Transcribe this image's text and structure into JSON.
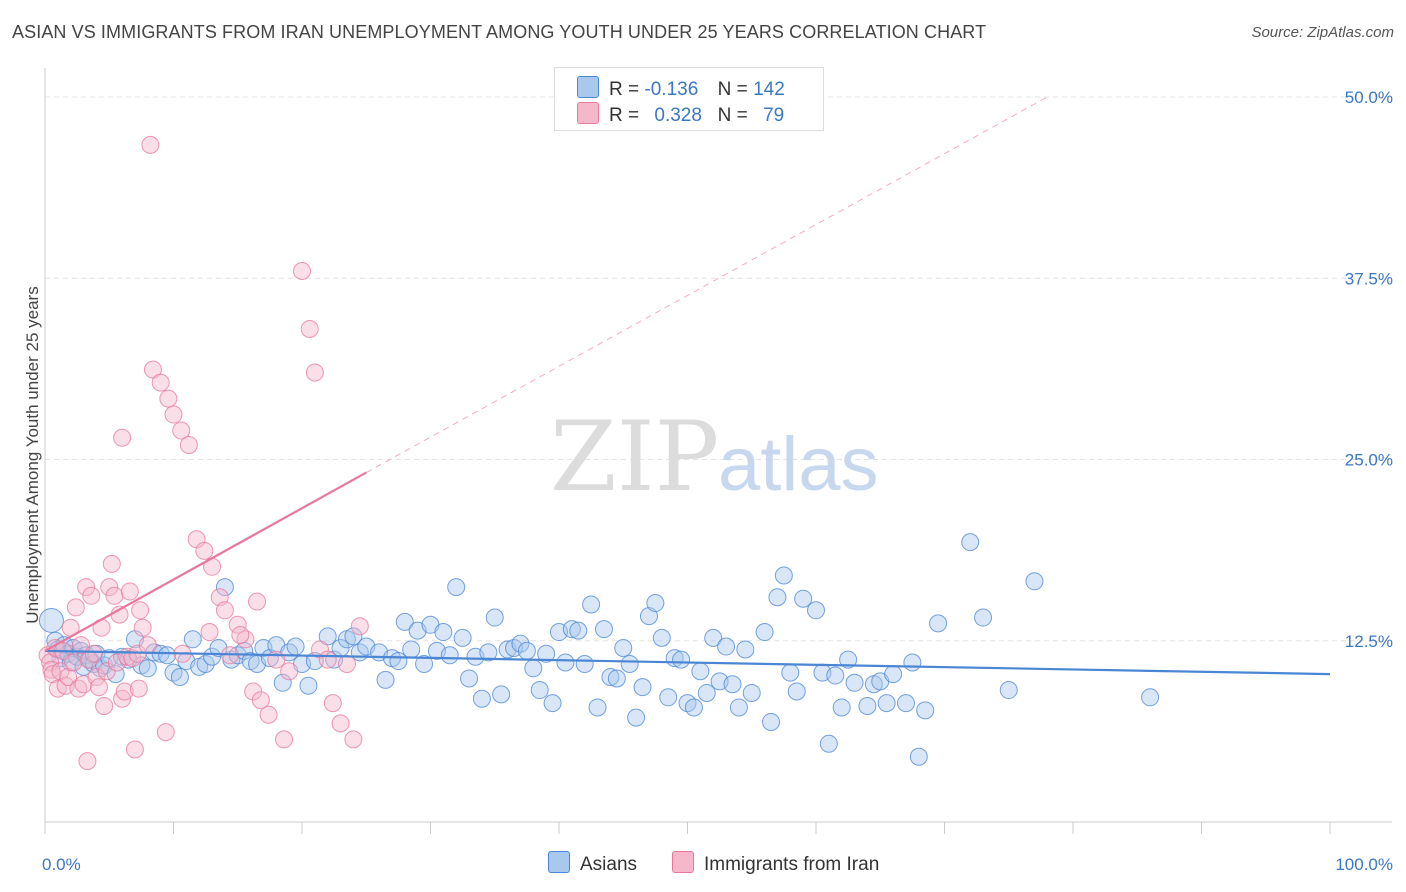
{
  "title": "ASIAN VS IMMIGRANTS FROM IRAN UNEMPLOYMENT AMONG YOUTH UNDER 25 YEARS CORRELATION CHART",
  "source": "Source: ZipAtlas.com",
  "watermark": {
    "zip": "ZIP",
    "atlas": "atlas"
  },
  "colors": {
    "asians": "#4a86d4",
    "iran": "#e8779b",
    "asians_fill": "#a9c8ee",
    "iran_fill": "#f5b8cb",
    "tick": "#3b78c4"
  },
  "legend": {
    "rows": [
      {
        "r_label": "R =",
        "r_value": "-0.136",
        "n_label": "N =",
        "n_value": "142"
      },
      {
        "r_label": "R =",
        "r_value": "0.328",
        "n_label": "N =",
        "n_value": "79"
      }
    ]
  },
  "bottom_legend": [
    {
      "label": "Asians"
    },
    {
      "label": "Immigrants from Iran"
    }
  ],
  "chart_data": {
    "type": "scatter",
    "ylabel": "Unemployment Among Youth under 25 years",
    "xlim": [
      0,
      100
    ],
    "ylim": [
      0,
      50
    ],
    "x_tick_labels": [
      "0.0%",
      "100.0%"
    ],
    "y_ticks": [
      12.5,
      25.0,
      37.5,
      50.0
    ],
    "y_tick_labels": [
      "12.5%",
      "25.0%",
      "37.5%",
      "50.0%"
    ],
    "grid": "horizontal dashed",
    "legend_position": "top-center",
    "series": [
      {
        "name": "Asians",
        "trend": {
          "x0": 0,
          "y0": 11.8,
          "x1": 100,
          "y1": 10.2
        },
        "points": [
          [
            0.5,
            13.9
          ],
          [
            0.8,
            12.5
          ],
          [
            1.0,
            11.9
          ],
          [
            1.2,
            11.3
          ],
          [
            1.5,
            12.2
          ],
          [
            1.8,
            11.6
          ],
          [
            2.0,
            11.0
          ],
          [
            2.2,
            12.0
          ],
          [
            2.5,
            11.4
          ],
          [
            2.8,
            11.8
          ],
          [
            3.0,
            10.7
          ],
          [
            3.2,
            11.5
          ],
          [
            3.5,
            11.2
          ],
          [
            3.8,
            10.9
          ],
          [
            4.0,
            11.6
          ],
          [
            4.3,
            10.6
          ],
          [
            4.6,
            10.8
          ],
          [
            5.0,
            11.3
          ],
          [
            5.5,
            10.2
          ],
          [
            6.0,
            11.4
          ],
          [
            6.5,
            11.2
          ],
          [
            7.0,
            12.6
          ],
          [
            7.5,
            10.8
          ],
          [
            8.0,
            10.6
          ],
          [
            8.5,
            11.7
          ],
          [
            9.0,
            11.6
          ],
          [
            9.5,
            11.5
          ],
          [
            10.0,
            10.3
          ],
          [
            10.5,
            10.0
          ],
          [
            11.0,
            11.1
          ],
          [
            11.5,
            12.6
          ],
          [
            12.0,
            10.7
          ],
          [
            12.5,
            10.9
          ],
          [
            13.0,
            11.4
          ],
          [
            13.5,
            12.0
          ],
          [
            14.0,
            16.2
          ],
          [
            14.5,
            11.2
          ],
          [
            15.0,
            11.5
          ],
          [
            15.5,
            11.8
          ],
          [
            16.0,
            11.1
          ],
          [
            16.5,
            10.9
          ],
          [
            17.0,
            12.0
          ],
          [
            17.5,
            11.3
          ],
          [
            18.0,
            12.2
          ],
          [
            18.5,
            9.6
          ],
          [
            19.0,
            11.7
          ],
          [
            19.5,
            12.1
          ],
          [
            20.0,
            10.9
          ],
          [
            20.5,
            9.4
          ],
          [
            21.0,
            11.1
          ],
          [
            22.0,
            12.8
          ],
          [
            22.5,
            11.2
          ],
          [
            23.0,
            12.0
          ],
          [
            23.5,
            12.6
          ],
          [
            24.0,
            12.8
          ],
          [
            24.5,
            11.7
          ],
          [
            25.0,
            12.1
          ],
          [
            26.0,
            11.7
          ],
          [
            26.5,
            9.8
          ],
          [
            27.0,
            11.3
          ],
          [
            27.5,
            11.1
          ],
          [
            28.0,
            13.8
          ],
          [
            28.5,
            11.9
          ],
          [
            29.0,
            13.2
          ],
          [
            29.5,
            10.9
          ],
          [
            30.0,
            13.6
          ],
          [
            30.5,
            11.8
          ],
          [
            31.0,
            13.1
          ],
          [
            31.5,
            11.5
          ],
          [
            32.0,
            16.2
          ],
          [
            32.5,
            12.7
          ],
          [
            33.0,
            9.9
          ],
          [
            33.5,
            11.4
          ],
          [
            34.0,
            8.5
          ],
          [
            34.5,
            11.7
          ],
          [
            35.0,
            14.1
          ],
          [
            35.5,
            8.8
          ],
          [
            36.0,
            11.9
          ],
          [
            36.5,
            12.0
          ],
          [
            37.0,
            12.3
          ],
          [
            37.5,
            11.8
          ],
          [
            38.0,
            10.6
          ],
          [
            38.5,
            9.1
          ],
          [
            39.0,
            11.6
          ],
          [
            39.5,
            8.2
          ],
          [
            40.0,
            13.1
          ],
          [
            40.5,
            11.0
          ],
          [
            41.0,
            13.3
          ],
          [
            41.5,
            13.2
          ],
          [
            42.0,
            10.9
          ],
          [
            42.5,
            15.0
          ],
          [
            43.0,
            7.9
          ],
          [
            43.5,
            13.3
          ],
          [
            44.0,
            10.0
          ],
          [
            44.5,
            9.9
          ],
          [
            45.0,
            12.0
          ],
          [
            45.5,
            10.9
          ],
          [
            46.0,
            7.2
          ],
          [
            46.5,
            9.3
          ],
          [
            47.0,
            14.2
          ],
          [
            47.5,
            15.1
          ],
          [
            48.0,
            12.7
          ],
          [
            48.5,
            8.6
          ],
          [
            49.0,
            11.3
          ],
          [
            49.5,
            11.2
          ],
          [
            50.0,
            8.2
          ],
          [
            50.5,
            7.9
          ],
          [
            51.0,
            10.4
          ],
          [
            51.5,
            8.9
          ],
          [
            52.0,
            12.7
          ],
          [
            52.5,
            9.7
          ],
          [
            53.0,
            12.1
          ],
          [
            53.5,
            9.5
          ],
          [
            54.0,
            7.9
          ],
          [
            54.5,
            11.9
          ],
          [
            55.0,
            8.9
          ],
          [
            56.0,
            13.1
          ],
          [
            56.5,
            6.9
          ],
          [
            57.0,
            15.5
          ],
          [
            57.5,
            17.0
          ],
          [
            58.0,
            10.3
          ],
          [
            58.5,
            9.0
          ],
          [
            59.0,
            15.4
          ],
          [
            60.0,
            14.6
          ],
          [
            60.5,
            10.3
          ],
          [
            61.0,
            5.4
          ],
          [
            61.5,
            10.1
          ],
          [
            62.0,
            7.9
          ],
          [
            62.5,
            11.2
          ],
          [
            63.0,
            9.6
          ],
          [
            64.0,
            8.0
          ],
          [
            64.5,
            9.5
          ],
          [
            65.0,
            9.7
          ],
          [
            65.5,
            8.2
          ],
          [
            66.0,
            10.2
          ],
          [
            67.0,
            8.2
          ],
          [
            67.5,
            11.0
          ],
          [
            68.0,
            4.5
          ],
          [
            68.5,
            7.7
          ],
          [
            69.5,
            13.7
          ],
          [
            72.0,
            19.3
          ],
          [
            73.0,
            14.1
          ],
          [
            75.0,
            9.1
          ],
          [
            77.0,
            16.6
          ],
          [
            86.0,
            8.6
          ]
        ]
      },
      {
        "name": "Immigrants from Iran",
        "trend": {
          "x0": 0,
          "y0": 11.8,
          "x1": 25,
          "y1": 24.1
        },
        "trend_extension": {
          "x0": 25,
          "y0": 24.1,
          "x1": 78,
          "y1": 50.0
        },
        "points": [
          [
            0.2,
            11.5
          ],
          [
            0.4,
            11.0
          ],
          [
            0.5,
            10.5
          ],
          [
            0.6,
            10.2
          ],
          [
            0.8,
            12.0
          ],
          [
            1.0,
            9.2
          ],
          [
            1.2,
            10.4
          ],
          [
            1.4,
            11.8
          ],
          [
            1.6,
            9.4
          ],
          [
            1.8,
            10.0
          ],
          [
            2.0,
            13.4
          ],
          [
            2.2,
            11.0
          ],
          [
            2.4,
            14.8
          ],
          [
            2.6,
            9.2
          ],
          [
            2.8,
            12.2
          ],
          [
            3.0,
            9.5
          ],
          [
            3.2,
            16.2
          ],
          [
            3.4,
            11.2
          ],
          [
            3.6,
            15.6
          ],
          [
            3.8,
            11.6
          ],
          [
            4.0,
            10.0
          ],
          [
            4.2,
            9.3
          ],
          [
            4.4,
            13.4
          ],
          [
            4.6,
            8.0
          ],
          [
            4.8,
            10.4
          ],
          [
            5.0,
            16.2
          ],
          [
            5.2,
            17.8
          ],
          [
            5.4,
            15.6
          ],
          [
            5.6,
            11.0
          ],
          [
            5.8,
            14.3
          ],
          [
            6.0,
            8.5
          ],
          [
            6.2,
            9.0
          ],
          [
            6.4,
            11.4
          ],
          [
            6.6,
            15.9
          ],
          [
            6.8,
            11.3
          ],
          [
            7.0,
            5.0
          ],
          [
            7.2,
            11.6
          ],
          [
            7.4,
            14.6
          ],
          [
            7.6,
            13.4
          ],
          [
            8.0,
            12.2
          ],
          [
            8.4,
            31.2
          ],
          [
            9.0,
            30.3
          ],
          [
            9.6,
            29.2
          ],
          [
            10.0,
            28.1
          ],
          [
            10.6,
            27.0
          ],
          [
            11.2,
            26.0
          ],
          [
            11.8,
            19.5
          ],
          [
            12.4,
            18.7
          ],
          [
            13.0,
            17.6
          ],
          [
            13.6,
            15.5
          ],
          [
            14.0,
            14.6
          ],
          [
            14.4,
            11.5
          ],
          [
            15.0,
            13.6
          ],
          [
            15.6,
            12.6
          ],
          [
            16.2,
            9.0
          ],
          [
            16.8,
            8.4
          ],
          [
            17.4,
            7.4
          ],
          [
            18.0,
            11.2
          ],
          [
            18.6,
            5.7
          ],
          [
            19.0,
            10.4
          ],
          [
            20.0,
            38.0
          ],
          [
            20.6,
            34.0
          ],
          [
            21.0,
            31.0
          ],
          [
            21.4,
            11.9
          ],
          [
            22.0,
            11.2
          ],
          [
            22.4,
            8.2
          ],
          [
            23.0,
            6.8
          ],
          [
            23.5,
            10.9
          ],
          [
            24.0,
            5.7
          ],
          [
            24.5,
            13.5
          ],
          [
            8.2,
            46.7
          ],
          [
            6.0,
            26.5
          ],
          [
            7.3,
            9.2
          ],
          [
            9.4,
            6.2
          ],
          [
            10.7,
            11.6
          ],
          [
            12.8,
            13.1
          ],
          [
            15.2,
            12.9
          ],
          [
            16.5,
            15.2
          ],
          [
            3.3,
            4.2
          ]
        ]
      }
    ]
  }
}
